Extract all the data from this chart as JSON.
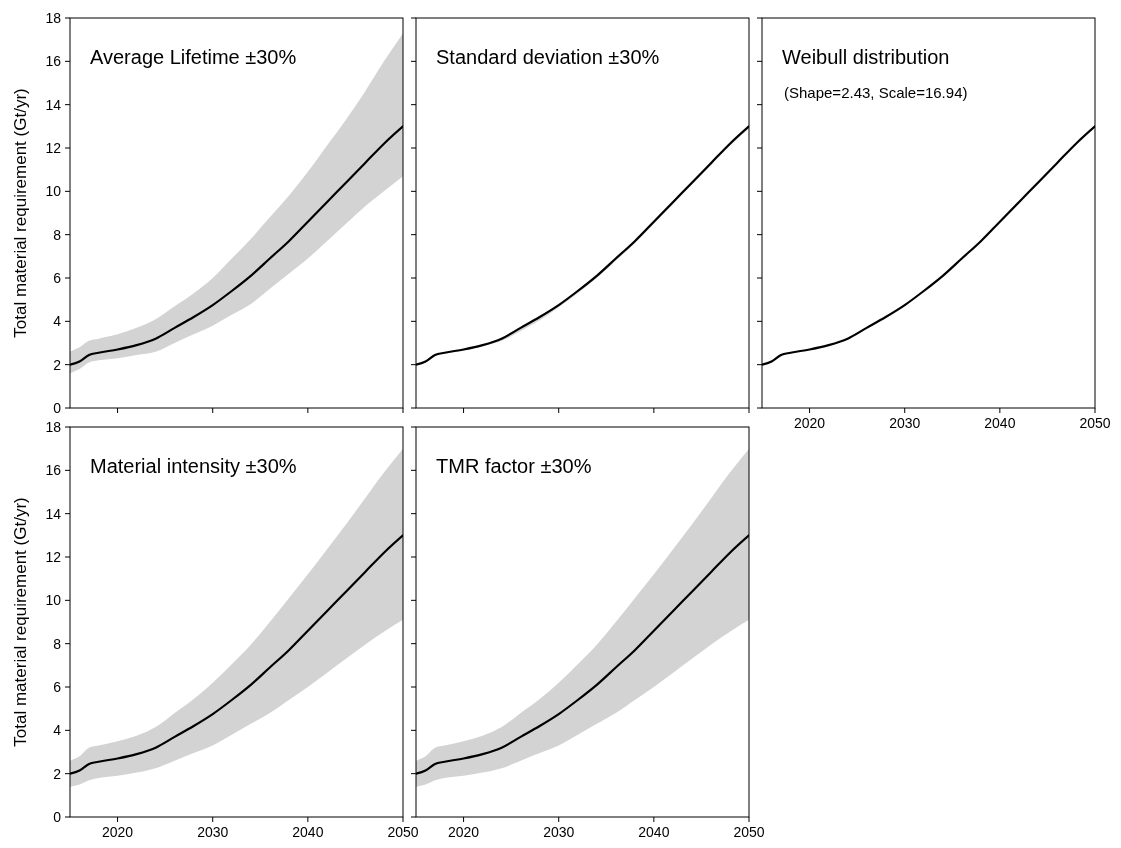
{
  "chart_data": [
    {
      "type": "line",
      "title": "Average Lifetime ±30%",
      "ylabel": "Total material requirement (Gt/yr)",
      "x": [
        2015,
        2016,
        2017,
        2018,
        2020,
        2022,
        2024,
        2026,
        2028,
        2030,
        2032,
        2034,
        2036,
        2038,
        2040,
        2042,
        2044,
        2046,
        2048,
        2050
      ],
      "xlim": [
        2015,
        2050
      ],
      "xticks": [
        2020,
        2030,
        2040,
        2050
      ],
      "ylim": [
        0,
        18
      ],
      "yticks": [
        0,
        2,
        4,
        6,
        8,
        10,
        12,
        14,
        16,
        18
      ],
      "tick_labels": "y",
      "grid": false,
      "series": [
        {
          "color": "#000000",
          "values": [
            2.0,
            2.15,
            2.45,
            2.55,
            2.7,
            2.9,
            3.2,
            3.7,
            4.2,
            4.75,
            5.4,
            6.1,
            6.9,
            7.7,
            8.6,
            9.5,
            10.4,
            11.3,
            12.2,
            13.0
          ],
          "lower": [
            1.6,
            1.8,
            2.1,
            2.2,
            2.3,
            2.45,
            2.6,
            3.0,
            3.4,
            3.8,
            4.3,
            4.8,
            5.5,
            6.2,
            6.9,
            7.7,
            8.5,
            9.3,
            10.0,
            10.7
          ],
          "upper": [
            2.6,
            2.8,
            3.1,
            3.2,
            3.4,
            3.7,
            4.1,
            4.7,
            5.3,
            6.0,
            6.9,
            7.8,
            8.8,
            9.8,
            10.9,
            12.1,
            13.3,
            14.6,
            16.0,
            17.3
          ]
        }
      ]
    },
    {
      "type": "line",
      "title": "Standard deviation ±30%",
      "x": [
        2015,
        2016,
        2017,
        2018,
        2020,
        2022,
        2024,
        2026,
        2028,
        2030,
        2032,
        2034,
        2036,
        2038,
        2040,
        2042,
        2044,
        2046,
        2048,
        2050
      ],
      "xlim": [
        2015,
        2050
      ],
      "xticks": [
        2020,
        2030,
        2040,
        2050
      ],
      "ylim": [
        0,
        18
      ],
      "yticks": [
        0,
        2,
        4,
        6,
        8,
        10,
        12,
        14,
        16,
        18
      ],
      "tick_labels": false,
      "grid": false,
      "series": [
        {
          "color": "#000000",
          "values": [
            2.0,
            2.15,
            2.45,
            2.55,
            2.7,
            2.9,
            3.2,
            3.7,
            4.2,
            4.75,
            5.4,
            6.1,
            6.9,
            7.7,
            8.6,
            9.5,
            10.4,
            11.3,
            12.2,
            13.0
          ],
          "lower": [
            2.0,
            2.1,
            2.4,
            2.5,
            2.65,
            2.85,
            3.1,
            3.55,
            4.05,
            4.65,
            5.3,
            6.0,
            6.8,
            7.6,
            8.5,
            9.4,
            10.3,
            11.2,
            12.1,
            12.9
          ],
          "upper": [
            2.0,
            2.15,
            2.45,
            2.55,
            2.7,
            2.9,
            3.25,
            3.75,
            4.25,
            4.8,
            5.45,
            6.15,
            6.95,
            7.75,
            8.65,
            9.55,
            10.45,
            11.35,
            12.25,
            13.05
          ]
        }
      ]
    },
    {
      "type": "line",
      "title": "Weibull distribution",
      "subtitle": "(Shape=2.43, Scale=16.94)",
      "x": [
        2015,
        2016,
        2017,
        2018,
        2020,
        2022,
        2024,
        2026,
        2028,
        2030,
        2032,
        2034,
        2036,
        2038,
        2040,
        2042,
        2044,
        2046,
        2048,
        2050
      ],
      "xlim": [
        2015,
        2050
      ],
      "xticks": [
        2020,
        2030,
        2040,
        2050
      ],
      "ylim": [
        0,
        18
      ],
      "yticks": [
        0,
        2,
        4,
        6,
        8,
        10,
        12,
        14,
        16,
        18
      ],
      "tick_labels": "x",
      "grid": false,
      "series": [
        {
          "color": "#000000",
          "values": [
            2.0,
            2.15,
            2.45,
            2.55,
            2.7,
            2.9,
            3.2,
            3.7,
            4.2,
            4.75,
            5.4,
            6.1,
            6.9,
            7.7,
            8.6,
            9.5,
            10.4,
            11.3,
            12.2,
            13.0
          ]
        }
      ]
    },
    {
      "type": "line",
      "title": "Material intensity ±30%",
      "ylabel": "Total material requirement (Gt/yr)",
      "x": [
        2015,
        2016,
        2017,
        2018,
        2020,
        2022,
        2024,
        2026,
        2028,
        2030,
        2032,
        2034,
        2036,
        2038,
        2040,
        2042,
        2044,
        2046,
        2048,
        2050
      ],
      "xlim": [
        2015,
        2050
      ],
      "xticks": [
        2020,
        2030,
        2040,
        2050
      ],
      "ylim": [
        0,
        18
      ],
      "yticks": [
        0,
        2,
        4,
        6,
        8,
        10,
        12,
        14,
        16,
        18
      ],
      "grid": false,
      "series": [
        {
          "color": "#000000",
          "values": [
            2.0,
            2.15,
            2.45,
            2.55,
            2.7,
            2.9,
            3.2,
            3.7,
            4.2,
            4.75,
            5.4,
            6.1,
            6.9,
            7.7,
            8.6,
            9.5,
            10.4,
            11.3,
            12.2,
            13.0
          ],
          "lower": [
            1.4,
            1.5,
            1.7,
            1.8,
            1.9,
            2.05,
            2.25,
            2.6,
            2.95,
            3.3,
            3.8,
            4.3,
            4.8,
            5.4,
            6.0,
            6.65,
            7.3,
            7.95,
            8.55,
            9.1
          ],
          "upper": [
            2.6,
            2.8,
            3.2,
            3.3,
            3.5,
            3.75,
            4.15,
            4.8,
            5.45,
            6.2,
            7.05,
            7.95,
            9.0,
            10.1,
            11.2,
            12.35,
            13.5,
            14.7,
            15.9,
            17.0
          ]
        }
      ]
    },
    {
      "type": "line",
      "title": "TMR factor ±30%",
      "x": [
        2015,
        2016,
        2017,
        2018,
        2020,
        2022,
        2024,
        2026,
        2028,
        2030,
        2032,
        2034,
        2036,
        2038,
        2040,
        2042,
        2044,
        2046,
        2048,
        2050
      ],
      "xlim": [
        2015,
        2050
      ],
      "xticks": [
        2020,
        2030,
        2040,
        2050
      ],
      "ylim": [
        0,
        18
      ],
      "yticks": [
        0,
        2,
        4,
        6,
        8,
        10,
        12,
        14,
        16,
        18
      ],
      "tick_labels": "x",
      "grid": false,
      "series": [
        {
          "color": "#000000",
          "values": [
            2.0,
            2.15,
            2.45,
            2.55,
            2.7,
            2.9,
            3.2,
            3.7,
            4.2,
            4.75,
            5.4,
            6.1,
            6.9,
            7.7,
            8.6,
            9.5,
            10.4,
            11.3,
            12.2,
            13.0
          ],
          "lower": [
            1.4,
            1.5,
            1.7,
            1.8,
            1.9,
            2.05,
            2.25,
            2.6,
            2.95,
            3.3,
            3.8,
            4.3,
            4.8,
            5.4,
            6.0,
            6.65,
            7.3,
            7.95,
            8.55,
            9.1
          ],
          "upper": [
            2.6,
            2.8,
            3.2,
            3.3,
            3.5,
            3.75,
            4.15,
            4.8,
            5.45,
            6.2,
            7.05,
            7.95,
            9.0,
            10.1,
            11.2,
            12.35,
            13.5,
            14.7,
            15.9,
            17.0
          ]
        }
      ]
    }
  ]
}
